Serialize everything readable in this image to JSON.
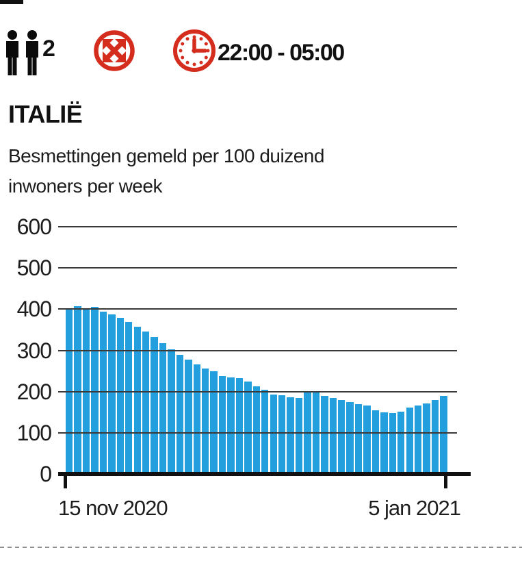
{
  "header": {
    "persons_count": "2",
    "curfew_hours": "22:00 - 05:00",
    "icons": [
      "two-persons-icon",
      "no-travel-crossed-arrows-icon",
      "clock-icon"
    ]
  },
  "title": "ITALIË",
  "subtitle_line1": "Besmettingen gemeld per 100 duizend",
  "subtitle_line2": "inwoners per week",
  "colors": {
    "bar_blue": "#229fdc",
    "icon_red": "#d42d1e",
    "grid_gray": "#3a3a3a",
    "text_black": "#111111"
  },
  "chart_data": {
    "type": "bar",
    "title": "ITALIË",
    "subtitle": "Besmettingen gemeld per 100 duizend inwoners per week",
    "xlabel": "",
    "ylabel": "Besmettingen per 100 duizend inwoners per week",
    "ylim": [
      0,
      600
    ],
    "y_ticks": [
      0,
      100,
      200,
      300,
      400,
      500,
      600
    ],
    "grid": true,
    "legend_position": "none",
    "x_start_label": "15 nov 2020",
    "x_end_label": "5 jan 2021",
    "bar_color": "#229fdc",
    "values": [
      403,
      408,
      403,
      405,
      394,
      388,
      379,
      369,
      357,
      346,
      332,
      317,
      302,
      290,
      277,
      266,
      256,
      249,
      238,
      235,
      233,
      225,
      213,
      204,
      193,
      191,
      187,
      185,
      197,
      198,
      190,
      184,
      180,
      175,
      169,
      167,
      155,
      149,
      148,
      151,
      161,
      166,
      172,
      180,
      190
    ]
  }
}
